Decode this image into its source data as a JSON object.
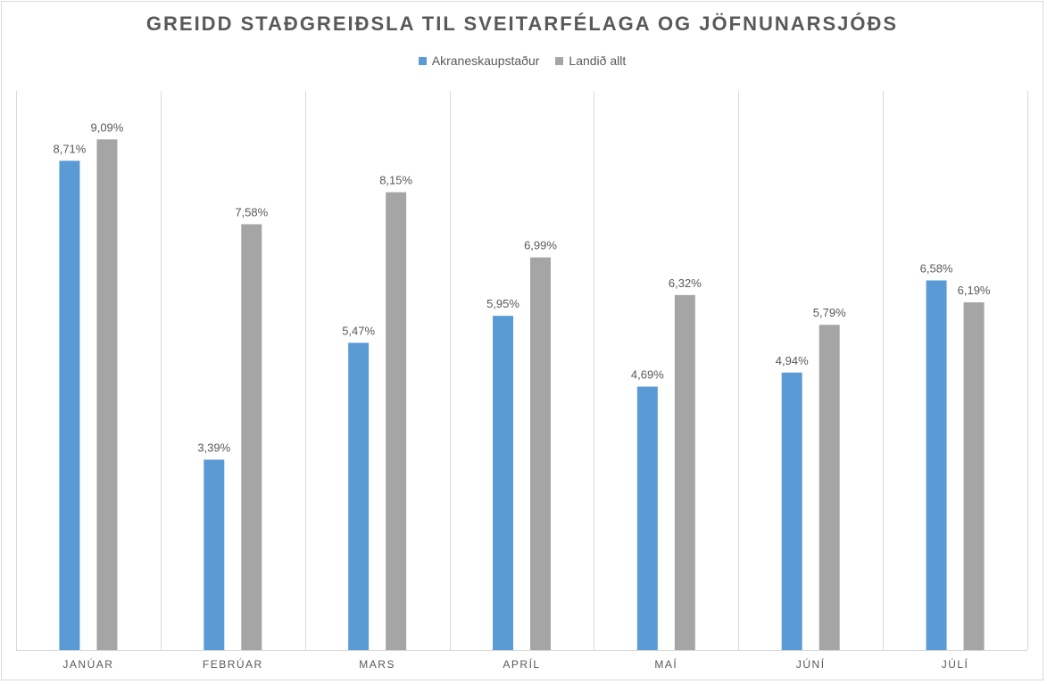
{
  "chart_data": {
    "type": "bar",
    "title": "GREIDD STAÐGREIÐSLA TIL SVEITARFÉLAGA OG JÖFNUNARSJÓÐS",
    "categories": [
      "JANÚAR",
      "FEBRÚAR",
      "MARS",
      "APRÍL",
      "MAÍ",
      "JÚNÍ",
      "JÚLÍ"
    ],
    "series": [
      {
        "name": "Akraneskaupstaður",
        "color": "#5b9bd5",
        "values": [
          8.71,
          3.39,
          5.47,
          5.95,
          4.69,
          4.94,
          6.58
        ],
        "labels": [
          "8,71%",
          "3,39%",
          "5,47%",
          "5,95%",
          "4,69%",
          "4,94%",
          "6,58%"
        ]
      },
      {
        "name": "Landið allt",
        "color": "#a5a5a5",
        "values": [
          9.09,
          7.58,
          8.15,
          6.99,
          6.32,
          5.79,
          6.19
        ],
        "labels": [
          "9,09%",
          "7,58%",
          "8,15%",
          "6,99%",
          "6,32%",
          "5,79%",
          "6,19%"
        ]
      }
    ],
    "ylim": [
      0,
      10
    ],
    "grid": "vertical separators between categories",
    "legend": "top-center",
    "xlabel": "",
    "ylabel": ""
  }
}
